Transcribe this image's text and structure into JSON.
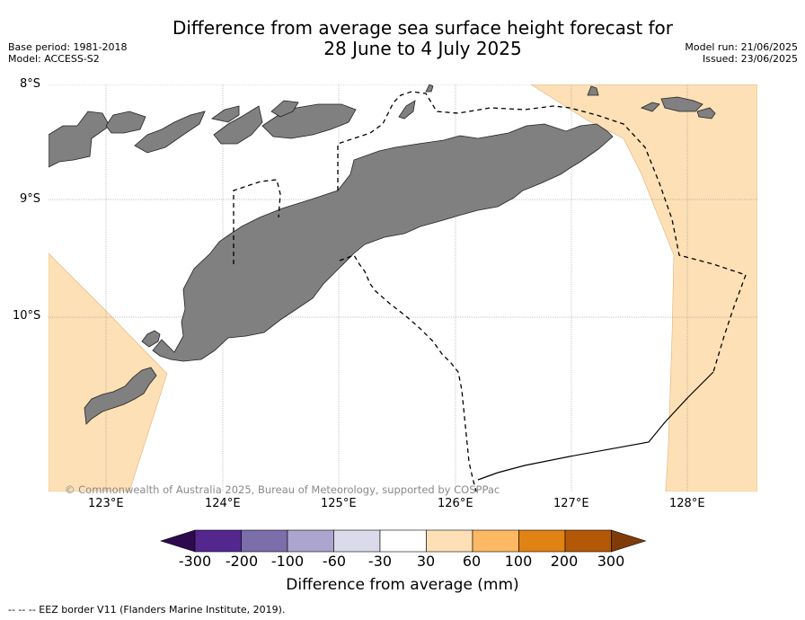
{
  "title": {
    "line1": "Difference from average sea surface height forecast for",
    "line2": "28 June to 4 July 2025"
  },
  "meta": {
    "base_period": "Base period: 1981-2018",
    "model": "Model: ACCESS-S2",
    "model_run": "Model run: 21/06/2025",
    "issued": "Issued: 23/06/2025"
  },
  "map": {
    "lat_labels": [
      "8°S",
      "9°S",
      "10°S"
    ],
    "lon_labels": [
      "123°E",
      "124°E",
      "125°E",
      "126°E",
      "127°E",
      "128°E"
    ],
    "land_color": "#808080",
    "anomaly_fill_color": "#fde0b6",
    "copyright": "© Commonwealth of Australia 2025, Bureau of Meteorology, supported by COSPPac"
  },
  "colorbar": {
    "ticks": [
      "-300",
      "-200",
      "-100",
      "-60",
      "-30",
      "30",
      "60",
      "100",
      "200",
      "300"
    ],
    "colors": [
      "#2d0a4e",
      "#54278f",
      "#7c6eab",
      "#aba5cf",
      "#dadaeb",
      "#ffffff",
      "#fee0b6",
      "#fdb863",
      "#e08214",
      "#b35806",
      "#7f3b08"
    ],
    "label": "Difference from average (mm)"
  },
  "footnote": "--  --  -- EEZ border V11 (Flanders Marine Institute, 2019)."
}
